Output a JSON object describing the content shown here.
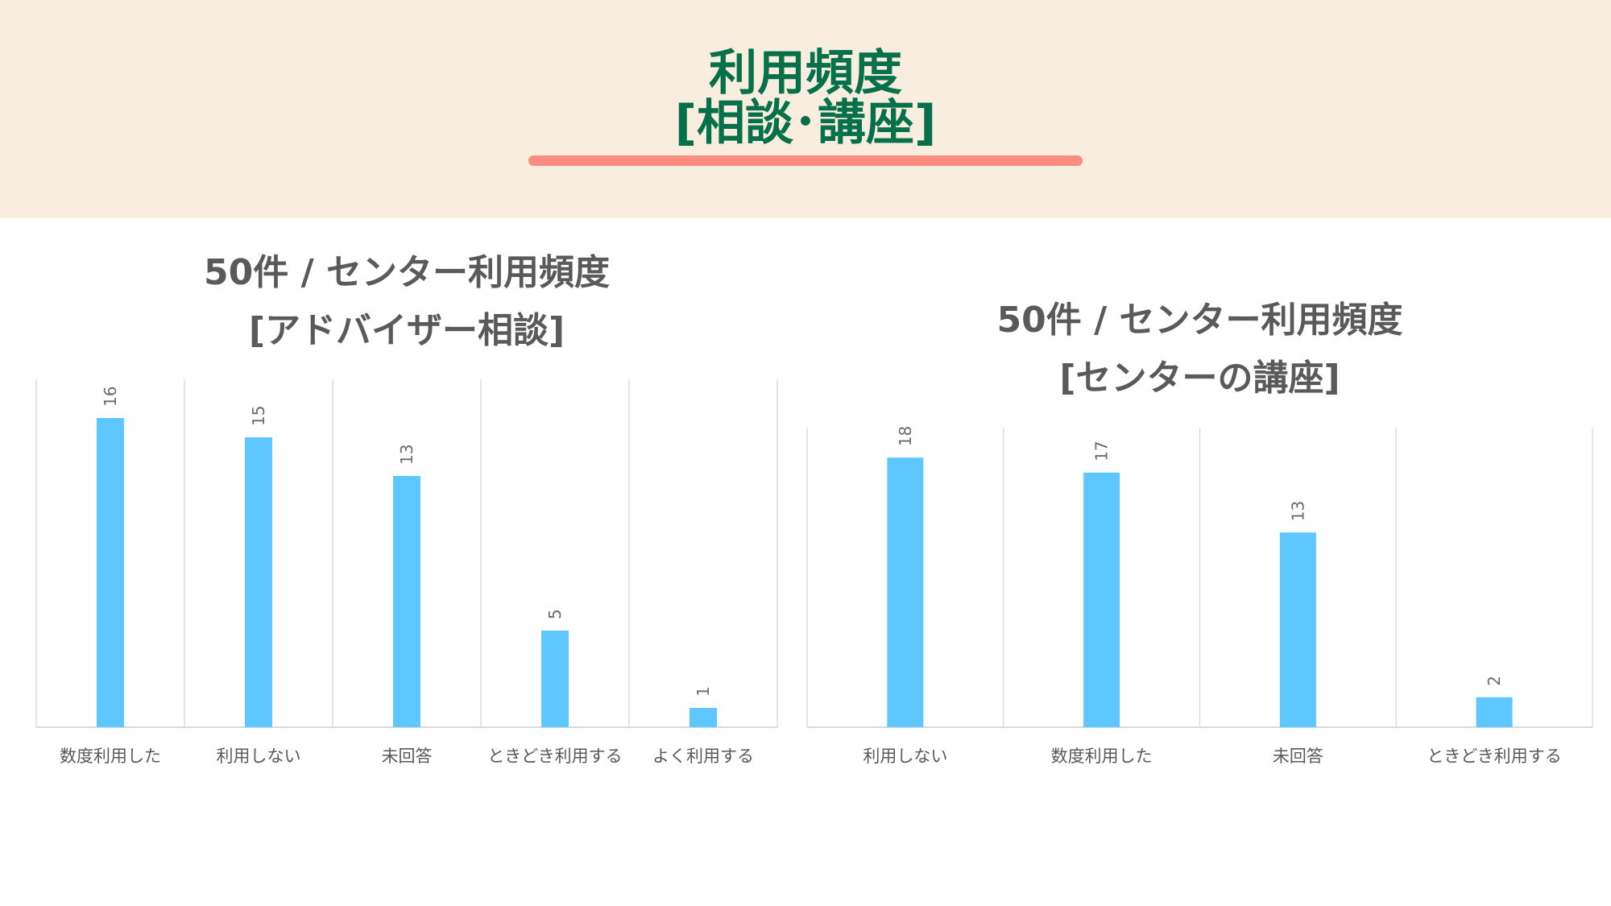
{
  "page": {
    "title_line1": "利用頻度",
    "title_line2": "[相談･講座]"
  },
  "colors": {
    "header_bg": "#f9ede0",
    "title": "#05704a",
    "underline": "#fa8c80",
    "bar": "#5fc7ff",
    "chart_title": "#5a5a5a",
    "grid": "#d9d9d9"
  },
  "chart_data": [
    {
      "type": "bar",
      "title_line1": "50件 / センター利用頻度",
      "title_line2": "[アドバイザー相談]",
      "categories": [
        "数度利用した",
        "利用しない",
        "未回答",
        "ときどき利用する",
        "よく利用する"
      ],
      "values": [
        16,
        15,
        13,
        5,
        1
      ],
      "ylim": [
        0,
        18
      ],
      "grid": "vertical",
      "data_labels": true
    },
    {
      "type": "bar",
      "title_line1": "50件 / センター利用頻度",
      "title_line2": "[センターの講座]",
      "categories": [
        "利用しない",
        "数度利用した",
        "未回答",
        "ときどき利用する"
      ],
      "values": [
        18,
        17,
        13,
        2
      ],
      "ylim": [
        0,
        20
      ],
      "grid": "vertical",
      "data_labels": true
    }
  ]
}
